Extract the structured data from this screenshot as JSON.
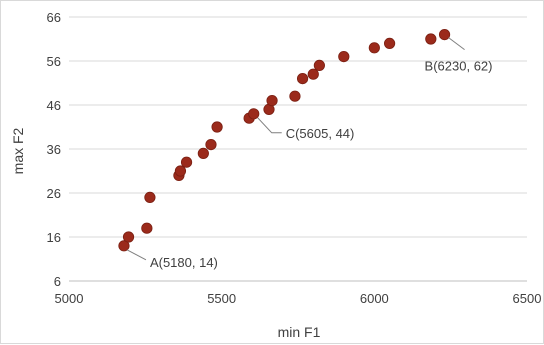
{
  "chart_data": {
    "type": "scatter",
    "xlabel": "min F1",
    "ylabel": "max F2",
    "xlim": [
      5000,
      6500
    ],
    "ylim": [
      6,
      66
    ],
    "xticks": [
      5000,
      5500,
      6000,
      6500
    ],
    "yticks": [
      6,
      16,
      26,
      36,
      46,
      56,
      66
    ],
    "grid": "horizontal",
    "marker_color": "#9b2a1b",
    "points": [
      {
        "x": 5180,
        "y": 14
      },
      {
        "x": 5195,
        "y": 16
      },
      {
        "x": 5255,
        "y": 18
      },
      {
        "x": 5265,
        "y": 25
      },
      {
        "x": 5360,
        "y": 30
      },
      {
        "x": 5365,
        "y": 31
      },
      {
        "x": 5385,
        "y": 33
      },
      {
        "x": 5440,
        "y": 35
      },
      {
        "x": 5465,
        "y": 37
      },
      {
        "x": 5485,
        "y": 41
      },
      {
        "x": 5590,
        "y": 43
      },
      {
        "x": 5605,
        "y": 44
      },
      {
        "x": 5655,
        "y": 45
      },
      {
        "x": 5665,
        "y": 47
      },
      {
        "x": 5740,
        "y": 48
      },
      {
        "x": 5765,
        "y": 52
      },
      {
        "x": 5800,
        "y": 53
      },
      {
        "x": 5820,
        "y": 55
      },
      {
        "x": 5900,
        "y": 57
      },
      {
        "x": 6000,
        "y": 59
      },
      {
        "x": 6050,
        "y": 60
      },
      {
        "x": 6185,
        "y": 61
      },
      {
        "x": 6230,
        "y": 62
      }
    ],
    "annotations": [
      {
        "text": "A(5180, 14)",
        "x": 5180,
        "y": 14
      },
      {
        "text": "C(5605, 44)",
        "x": 5605,
        "y": 44
      },
      {
        "text": "B(6230, 62)",
        "x": 6230,
        "y": 62
      }
    ]
  }
}
